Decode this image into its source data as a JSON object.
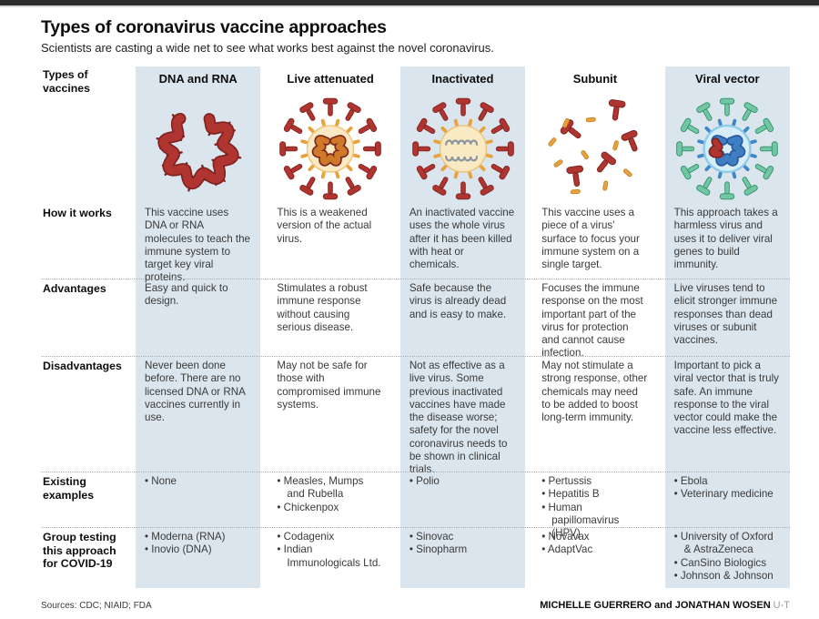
{
  "page": {
    "title": "Types of coronavirus vaccine approaches",
    "subtitle": "Scientists are casting a wide net to see what works best against the novel coronavirus.",
    "sources": "Sources: CDC; NIAID; FDA",
    "credit_names": "MICHELLE GUERRERO and JONATHAN WOSEN",
    "credit_org": "U-T"
  },
  "table": {
    "row_labels": [
      "Types of vaccines",
      "How it works",
      "Advantages",
      "Disadvantages",
      "Existing examples",
      "Group testing this approach for COVID-19"
    ],
    "columns": [
      {
        "name": "DNA and RNA",
        "icon": "dna-rna-strand-illustration",
        "highlighted": true,
        "how_it_works": "This vaccine uses DNA or RNA molecules to teach the immune system to target key viral proteins.",
        "advantages": "Easy and quick to design.",
        "disadvantages": "Never been done before. There are no licensed DNA or RNA vaccines currently in use.",
        "existing_examples": [
          "None"
        ],
        "groups_testing": [
          "Moderna (RNA)",
          "Inovio (DNA)"
        ]
      },
      {
        "name": "Live attenuated",
        "icon": "live-attenuated-virus-illustration",
        "highlighted": false,
        "how_it_works": "This is a weakened version of the actual virus.",
        "advantages": "Stimulates a robust immune response without causing serious disease.",
        "disadvantages": "May not be safe for those with compromised immune systems.",
        "existing_examples": [
          "Measles, Mumps and Rubella",
          "Chickenpox"
        ],
        "groups_testing": [
          "Codagenix",
          "Indian Immunologicals Ltd."
        ]
      },
      {
        "name": "Inactivated",
        "icon": "inactivated-virus-illustration",
        "highlighted": true,
        "how_it_works": "An inactivated vaccine uses the whole virus after it has been killed with heat or chemicals.",
        "advantages": "Safe because the virus is already dead and is easy to make.",
        "disadvantages": "Not as effective as a live virus. Some previous inactivated vaccines have made the disease worse; safety for the novel coronavirus needs to be shown in clinical trials.",
        "existing_examples": [
          "Polio"
        ],
        "groups_testing": [
          "Sinovac",
          "Sinopharm"
        ]
      },
      {
        "name": "Subunit",
        "icon": "subunit-pieces-illustration",
        "highlighted": false,
        "how_it_works": "This vaccine uses a piece of a virus' surface to focus your immune system on a single target.",
        "advantages": "Focuses the immune response on the most important part of the virus for protection and cannot cause infection.",
        "disadvantages": "May not stimulate a strong response, other chemicals may need to be added to boost long-term immunity.",
        "existing_examples": [
          "Pertussis",
          "Hepatitis B",
          "Human papillomavirus (HPV)"
        ],
        "groups_testing": [
          "Novavax",
          "AdaptVac"
        ]
      },
      {
        "name": "Viral vector",
        "icon": "viral-vector-virus-illustration",
        "highlighted": true,
        "how_it_works": "This approach takes a harmless virus and uses it to deliver viral genes to build immunity.",
        "advantages": "Live viruses tend to elicit stronger immune responses than dead viruses or subunit vaccines.",
        "disadvantages": "Important to pick a viral vector that is truly safe. An immune response to the viral vector could make the vaccine less effective.",
        "existing_examples": [
          "Ebola",
          "Veterinary medicine"
        ],
        "groups_testing": [
          "University of Oxford & AstraZeneca",
          "CanSino Biologics",
          "Johnson & Johnson"
        ]
      }
    ]
  },
  "colors": {
    "accent_column_bg": "#dae5ed",
    "top_bar": "#2d2d2d",
    "red": "#b0342f",
    "red_dark": "#7e2420",
    "orange": "#e8a23b",
    "orange_dark": "#c07b1f",
    "cream_body": "#faeac3",
    "cream_ring": "#eec27a",
    "rna_orange": "#cf7a2a",
    "gray_coil": "#8e979f",
    "teal": "#72c6a2",
    "teal_dark": "#2f8f6a",
    "blue_rod": "#3f87c9",
    "body_blue": "#d7edf8",
    "body_blue_ring": "#8ccbe9",
    "strand_blue": "#3e7fc4",
    "strand_blue_dark": "#285a9b"
  }
}
